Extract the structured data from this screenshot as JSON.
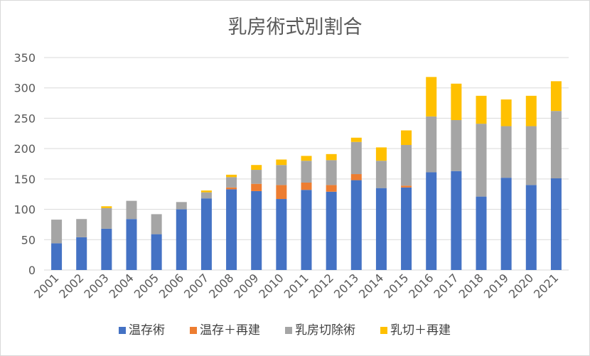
{
  "chart_data": {
    "type": "bar",
    "stacked": true,
    "title": "乳房術式別割合",
    "xlabel": "",
    "ylabel": "",
    "ylim": [
      0,
      350
    ],
    "yticks": [
      0,
      50,
      100,
      150,
      200,
      250,
      300,
      350
    ],
    "grid": true,
    "legend_position": "bottom",
    "categories": [
      "2001",
      "2002",
      "2003",
      "2004",
      "2005",
      "2006",
      "2007",
      "2008",
      "2009",
      "2010",
      "2011",
      "2012",
      "2013",
      "2014",
      "2015",
      "2016",
      "2017",
      "2018",
      "2019",
      "2020",
      "2021"
    ],
    "series": [
      {
        "name": "温存術",
        "color": "#4472c4",
        "values": [
          44,
          54,
          68,
          84,
          59,
          100,
          118,
          133,
          130,
          117,
          132,
          129,
          148,
          135,
          136,
          161,
          163,
          121,
          152,
          140,
          151
        ]
      },
      {
        "name": "温存＋再建",
        "color": "#ed7d31",
        "values": [
          0,
          0,
          0,
          0,
          0,
          0,
          0,
          3,
          12,
          23,
          12,
          11,
          10,
          0,
          3,
          0,
          0,
          0,
          0,
          0,
          0
        ]
      },
      {
        "name": "乳房切除術",
        "color": "#a5a5a5",
        "values": [
          39,
          30,
          34,
          30,
          33,
          12,
          10,
          17,
          23,
          33,
          36,
          41,
          53,
          45,
          67,
          92,
          84,
          120,
          85,
          97,
          111
        ]
      },
      {
        "name": "乳切＋再建",
        "color": "#ffc000",
        "values": [
          0,
          0,
          3,
          0,
          0,
          0,
          3,
          4,
          8,
          9,
          8,
          10,
          7,
          22,
          24,
          65,
          60,
          46,
          44,
          50,
          49
        ]
      }
    ]
  }
}
